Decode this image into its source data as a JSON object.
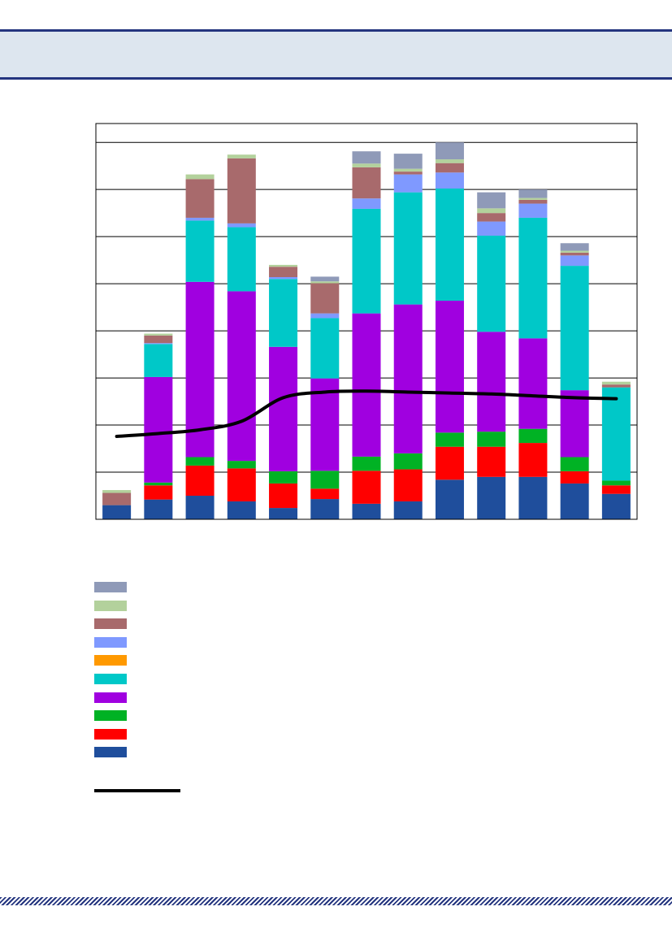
{
  "chart_data": {
    "type": "bar",
    "stacked": true,
    "title": "",
    "xlabel": "",
    "ylabel": "",
    "grid": true,
    "ylim": [
      0,
      8.4
    ],
    "categories": [
      "",
      "",
      "",
      "",
      "",
      "",
      "",
      "",
      "",
      "",
      "",
      "",
      ""
    ],
    "series": [
      {
        "color": "#1f4e9c",
        "values": [
          0.3,
          0.42,
          0.5,
          0.38,
          0.24,
          0.43,
          0.33,
          0.38,
          0.84,
          0.9,
          0.9,
          0.76,
          0.54
        ]
      },
      {
        "color": "#ff0000",
        "values": [
          0,
          0.3,
          0.64,
          0.7,
          0.52,
          0.22,
          0.7,
          0.68,
          0.7,
          0.64,
          0.72,
          0.26,
          0.18
        ]
      },
      {
        "color": "#00b224",
        "values": [
          0,
          0.06,
          0.18,
          0.16,
          0.26,
          0.38,
          0.3,
          0.34,
          0.3,
          0.32,
          0.3,
          0.3,
          0.1
        ]
      },
      {
        "color": "#a000e0",
        "values": [
          0,
          2.24,
          3.72,
          3.6,
          2.64,
          1.96,
          3.04,
          3.16,
          2.8,
          2.12,
          1.92,
          1.42,
          0
        ]
      },
      {
        "color": "#00c8c8",
        "values": [
          0,
          0.7,
          1.3,
          1.36,
          1.44,
          1.28,
          2.22,
          2.38,
          2.38,
          2.04,
          2.56,
          2.64,
          1.98
        ]
      },
      {
        "color": "#ff9900",
        "values": [
          0,
          0,
          0,
          0,
          0,
          0,
          0,
          0,
          0,
          0,
          0,
          0,
          0
        ]
      },
      {
        "color": "#7f99ff",
        "values": [
          0,
          0.02,
          0.06,
          0.08,
          0.04,
          0.1,
          0.22,
          0.38,
          0.34,
          0.3,
          0.3,
          0.22,
          0
        ]
      },
      {
        "color": "#a86a6c",
        "values": [
          0.26,
          0.16,
          0.82,
          1.38,
          0.22,
          0.64,
          0.66,
          0.06,
          0.2,
          0.18,
          0.08,
          0.06,
          0.06
        ]
      },
      {
        "color": "#b3d19c",
        "values": [
          0.06,
          0.04,
          0.1,
          0.08,
          0.04,
          0.04,
          0.08,
          0.06,
          0.08,
          0.1,
          0.04,
          0.04,
          0.06
        ]
      },
      {
        "color": "#8f9ab8",
        "values": [
          0,
          0,
          0,
          0,
          0,
          0.1,
          0.26,
          0.32,
          0.36,
          0.34,
          0.18,
          0.16,
          0
        ]
      }
    ],
    "line": {
      "color": "#000000",
      "values": [
        1.76,
        1.82,
        1.9,
        2.08,
        2.58,
        2.7,
        2.72,
        2.7,
        2.68,
        2.66,
        2.62,
        2.58,
        2.56
      ]
    }
  },
  "legend": {
    "items": [
      {
        "color": "#8f9ab8",
        "label": ""
      },
      {
        "color": "#b3d19c",
        "label": ""
      },
      {
        "color": "#a86a6c",
        "label": ""
      },
      {
        "color": "#7f99ff",
        "label": ""
      },
      {
        "color": "#ff9900",
        "label": ""
      },
      {
        "color": "#00c8c8",
        "label": ""
      },
      {
        "color": "#a000e0",
        "label": ""
      },
      {
        "color": "#00b224",
        "label": ""
      },
      {
        "color": "#ff0000",
        "label": ""
      },
      {
        "color": "#1f4e9c",
        "label": ""
      }
    ],
    "line_label": ""
  }
}
